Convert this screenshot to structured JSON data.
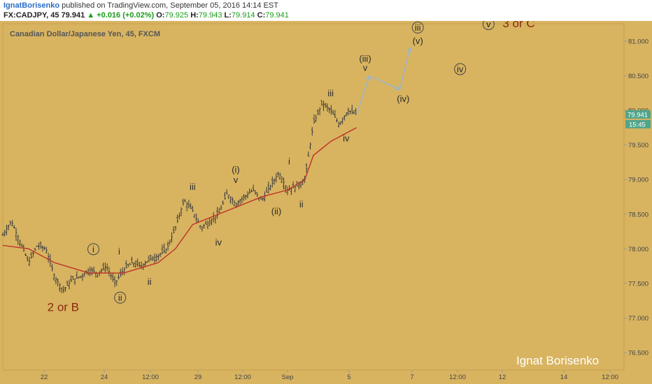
{
  "header": {
    "author": "IgnatBorisenko",
    "published": "published on TradingView.com, September 05, 2016 14:14 EST",
    "symbol": "FX:CADJPY, 45",
    "last": "79.941",
    "change": "+0.016 (+0.02%)",
    "o_label": "O:",
    "o": "79.925",
    "h_label": "H:",
    "h": "79.943",
    "l_label": "L:",
    "l": "79.914",
    "c_label": "C:",
    "c": "79.941"
  },
  "colors": {
    "background": "#d8b461",
    "border": "#c79f4b",
    "moving_average": "#c0392b",
    "projection": "#9fb4c9",
    "price_badge": "#4fa58b",
    "wave_text": "#2a2a2a",
    "big_label": "#8b2a10"
  },
  "chart_data": {
    "type": "candlestick",
    "title": "Canadian Dollar/Japanese Yen, 45, FXCM",
    "ylim": [
      76.25,
      81.25
    ],
    "y_ticks": [
      "81.000",
      "80.500",
      "80.000",
      "79.500",
      "79.000",
      "78.500",
      "78.000",
      "77.500",
      "77.000",
      "76.500"
    ],
    "x_ticks": [
      "22",
      "24",
      "12:00",
      "29",
      "12:00",
      "Sep",
      "5",
      "7",
      "12:00",
      "12",
      "14",
      "12:00"
    ],
    "price_tag": "79.941",
    "time_tag": "15:45",
    "price_path_points": [
      [
        0,
        78.2
      ],
      [
        1,
        78.4
      ],
      [
        2,
        78.1
      ],
      [
        3,
        77.8
      ],
      [
        4,
        78.05
      ],
      [
        5,
        78.0
      ],
      [
        6,
        77.6
      ],
      [
        7,
        77.4
      ],
      [
        8,
        77.55
      ],
      [
        9,
        77.6
      ],
      [
        10,
        77.7
      ],
      [
        11,
        77.65
      ],
      [
        12,
        77.75
      ],
      [
        13,
        77.5
      ],
      [
        14,
        77.7
      ],
      [
        15,
        77.8
      ],
      [
        16,
        77.75
      ],
      [
        17,
        77.85
      ],
      [
        18,
        77.9
      ],
      [
        19,
        78.0
      ],
      [
        20,
        78.3
      ],
      [
        21,
        78.7
      ],
      [
        22,
        78.55
      ],
      [
        23,
        78.3
      ],
      [
        24,
        78.4
      ],
      [
        25,
        78.5
      ],
      [
        26,
        78.8
      ],
      [
        27,
        78.65
      ],
      [
        28,
        78.75
      ],
      [
        29,
        78.85
      ],
      [
        30,
        78.7
      ],
      [
        31,
        78.9
      ],
      [
        32,
        79.1
      ],
      [
        33,
        78.85
      ],
      [
        34,
        78.9
      ],
      [
        35,
        79.0
      ],
      [
        36,
        79.8
      ],
      [
        37,
        80.1
      ],
      [
        38,
        80.0
      ],
      [
        39,
        79.8
      ],
      [
        40,
        80.0
      ],
      [
        41,
        79.941
      ]
    ],
    "moving_average_points": [
      [
        0,
        78.05
      ],
      [
        3,
        78.0
      ],
      [
        6,
        77.8
      ],
      [
        10,
        77.65
      ],
      [
        14,
        77.65
      ],
      [
        18,
        77.8
      ],
      [
        20,
        78.0
      ],
      [
        22,
        78.35
      ],
      [
        25,
        78.5
      ],
      [
        28,
        78.65
      ],
      [
        30,
        78.75
      ],
      [
        33,
        78.85
      ],
      [
        35,
        79.0
      ],
      [
        36,
        79.35
      ],
      [
        38,
        79.55
      ],
      [
        41,
        79.75
      ]
    ],
    "projection_points": [
      [
        41,
        79.941
      ],
      [
        42.5,
        80.5
      ],
      [
        46,
        80.3
      ],
      [
        47.2,
        80.9
      ]
    ],
    "wave_labels": [
      {
        "text": "i",
        "circled": true,
        "x": 10.5,
        "y": 77.95
      },
      {
        "text": "ii",
        "circled": true,
        "x": 13.6,
        "y": 77.25
      },
      {
        "text": "i",
        "circled": false,
        "x": 13.5,
        "y": 77.92
      },
      {
        "text": "ii",
        "circled": false,
        "x": 17,
        "y": 77.48
      },
      {
        "text": "iii",
        "circled": false,
        "x": 22,
        "y": 78.85
      },
      {
        "text": "iv",
        "circled": false,
        "x": 25,
        "y": 78.05
      },
      {
        "text": "(i)",
        "circled": false,
        "x": 27,
        "y": 79.1
      },
      {
        "text": "v",
        "circled": false,
        "x": 27,
        "y": 78.95
      },
      {
        "text": "(ii)",
        "circled": false,
        "x": 31.7,
        "y": 78.5
      },
      {
        "text": "i",
        "circled": false,
        "x": 33.2,
        "y": 79.22
      },
      {
        "text": "ii",
        "circled": false,
        "x": 34.6,
        "y": 78.6
      },
      {
        "text": "iii",
        "circled": false,
        "x": 38,
        "y": 80.2
      },
      {
        "text": "iv",
        "circled": false,
        "x": 39.8,
        "y": 79.55
      },
      {
        "text": "(iii)",
        "circled": false,
        "x": 42,
        "y": 80.7
      },
      {
        "text": "v",
        "circled": false,
        "x": 42,
        "y": 80.57
      },
      {
        "text": "(iv)",
        "circled": false,
        "x": 46.4,
        "y": 80.12
      },
      {
        "text": "iii",
        "circled": true,
        "x": 48.1,
        "y": 81.15
      },
      {
        "text": "(v)",
        "circled": false,
        "x": 48.1,
        "y": 80.96
      },
      {
        "text": "iv",
        "circled": true,
        "x": 53,
        "y": 80.55
      },
      {
        "text": "v",
        "circled": true,
        "x": 56.3,
        "y": 81.2
      }
    ],
    "big_labels": [
      {
        "text": "3 or C",
        "x": 59.8,
        "y": 81.2
      },
      {
        "text": "2 or B",
        "x": 7,
        "y": 77.1
      }
    ],
    "watermark": "Ignat Borisenko"
  }
}
